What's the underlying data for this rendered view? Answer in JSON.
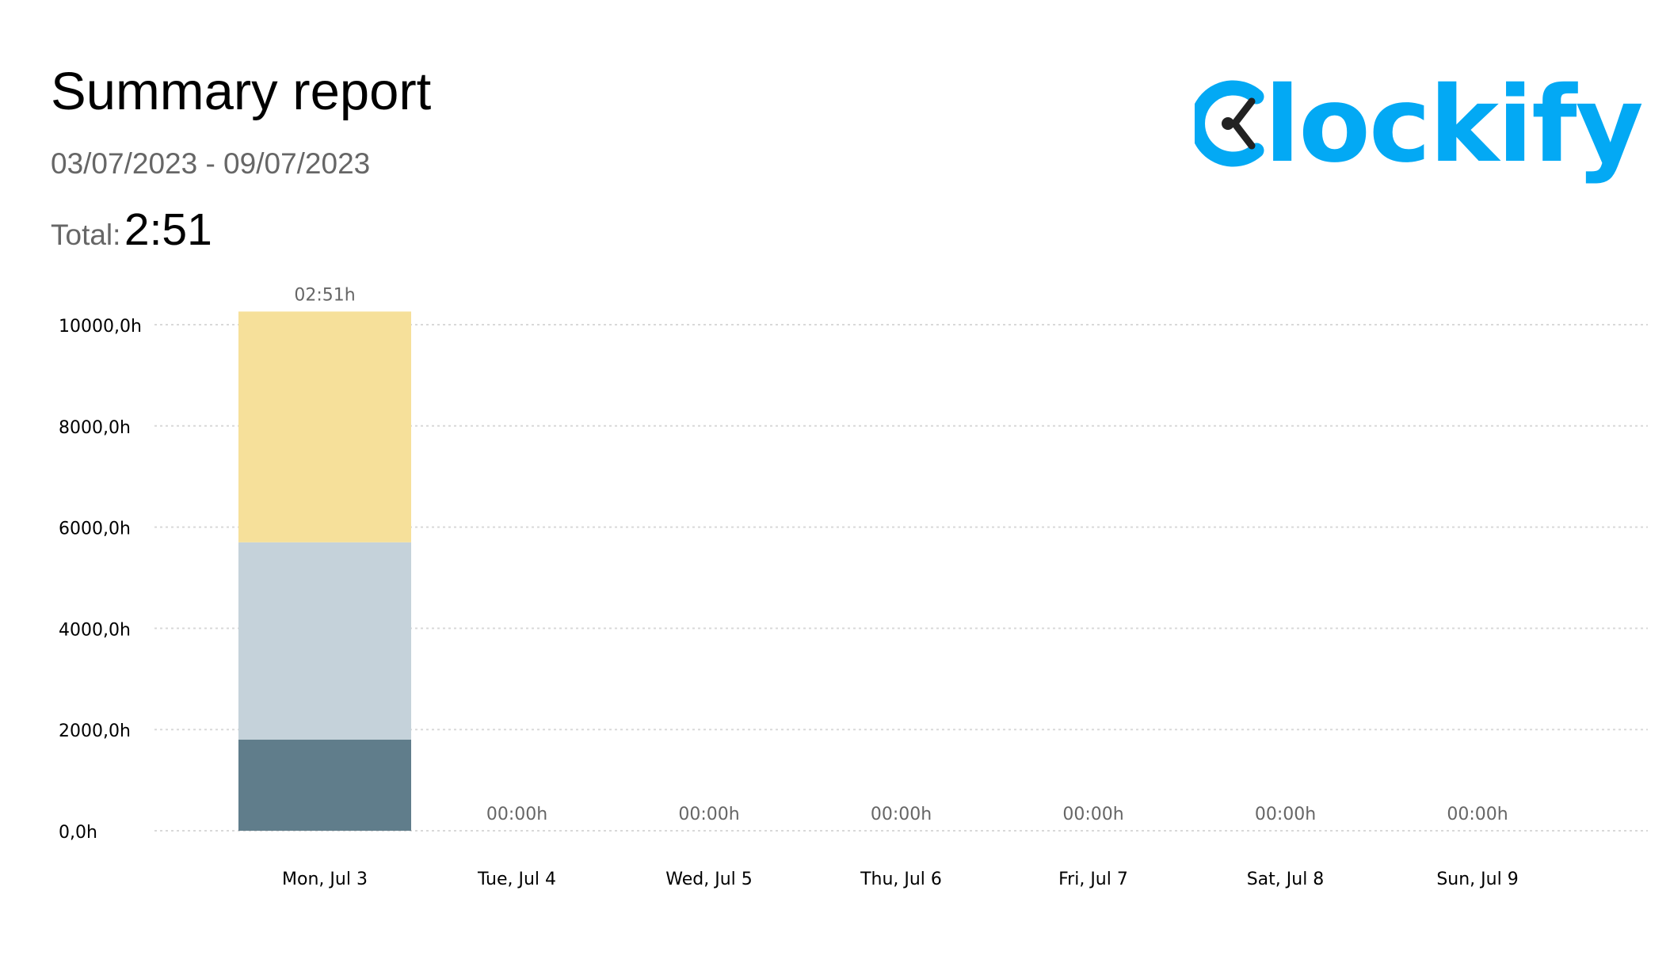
{
  "report": {
    "title": "Summary report",
    "date_range": "03/07/2023 - 09/07/2023",
    "total_label": "Total:",
    "total_value": "2:51"
  },
  "brand": {
    "name": "Clockify",
    "logo_text": "lockify",
    "color": "#03a9f4"
  },
  "chart_data": {
    "type": "bar",
    "stacked": true,
    "categories": [
      "Mon, Jul 3",
      "Tue, Jul 4",
      "Wed, Jul 5",
      "Thu, Jul 6",
      "Fri, Jul 7",
      "Sat, Jul 8",
      "Sun, Jul 9"
    ],
    "totals_labels": [
      "02:51h",
      "00:00h",
      "00:00h",
      "00:00h",
      "00:00h",
      "00:00h",
      "00:00h"
    ],
    "series": [
      {
        "color": "#607d8b",
        "values": [
          1800,
          0,
          0,
          0,
          0,
          0,
          0
        ]
      },
      {
        "color": "#c5d2da",
        "values": [
          3900,
          0,
          0,
          0,
          0,
          0,
          0
        ]
      },
      {
        "color": "#f6e09a",
        "values": [
          4560,
          0,
          0,
          0,
          0,
          0,
          0
        ]
      }
    ],
    "y_ticks": [
      0,
      2000,
      4000,
      6000,
      8000,
      10000
    ],
    "y_tick_labels": [
      "0,0h",
      "2000,0h",
      "4000,0h",
      "6000,0h",
      "8000,0h",
      "10000,0h"
    ],
    "ylim": [
      0,
      10000
    ],
    "grid": true,
    "legend": "none"
  }
}
